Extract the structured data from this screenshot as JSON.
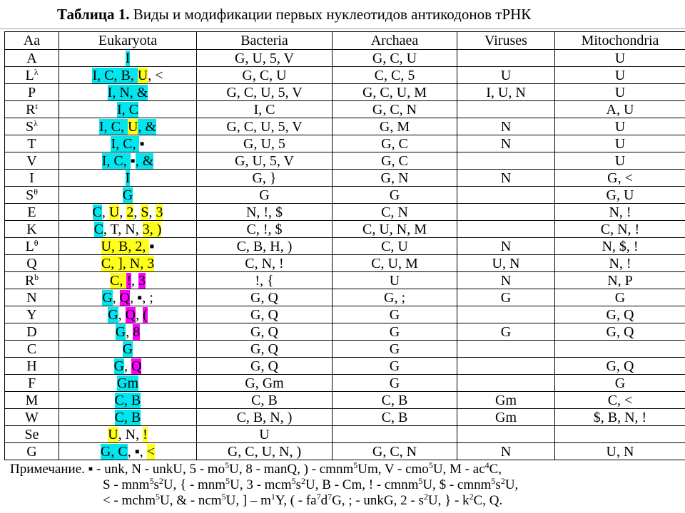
{
  "title": {
    "bold": "Таблица 1.",
    "rest": " Виды и модификации первых нуклеотидов антикодонов тРНК"
  },
  "headers": [
    "Aa",
    "Eukaryota",
    "Bacteria",
    "Archaea",
    "Viruses",
    "Mitochondria"
  ],
  "rows": [
    {
      "aa": "A",
      "aa_sup": "",
      "euk": [
        {
          "t": "I",
          "c": "c"
        }
      ],
      "bac": "G, U, 5, V",
      "arc": "G, C, U",
      "vir": "",
      "mito": "U"
    },
    {
      "aa": "L",
      "aa_sup": "λ",
      "euk": [
        {
          "t": "I, C, B, ",
          "c": "c"
        },
        {
          "t": "U",
          "c": "y"
        },
        {
          "t": ", <",
          "c": ""
        }
      ],
      "bac": "G, C, U",
      "arc": "C, C, 5",
      "vir": "U",
      "mito": "U"
    },
    {
      "aa": "P",
      "aa_sup": "",
      "euk": [
        {
          "t": "I, N, &",
          "c": "c"
        }
      ],
      "bac": "G, C, U, 5, V",
      "arc": "G, C, U, M",
      "vir": "I, U, N",
      "mito": "U"
    },
    {
      "aa": "R",
      "aa_sup": "t",
      "euk": [
        {
          "t": "I, C",
          "c": "c"
        }
      ],
      "bac": "I, C",
      "arc": "G, C, N",
      "vir": "",
      "mito": "A, U"
    },
    {
      "aa": "S",
      "aa_sup": "λ",
      "euk": [
        {
          "t": "I, C, ",
          "c": "c"
        },
        {
          "t": "U",
          "c": "y"
        },
        {
          "t": ", &",
          "c": "c"
        }
      ],
      "bac": "G, C, U, 5, V",
      "arc": "G, M",
      "vir": "N",
      "mito": "U"
    },
    {
      "aa": "T",
      "aa_sup": "",
      "euk": [
        {
          "t": "I, C, ",
          "c": "c"
        },
        {
          "t": "▪",
          "c": ""
        }
      ],
      "bac": "G, U, 5",
      "arc": "G, C",
      "vir": "N",
      "mito": "U"
    },
    {
      "aa": "V",
      "aa_sup": "",
      "euk": [
        {
          "t": "I, C, ",
          "c": "c"
        },
        {
          "t": "▪",
          "c": ""
        },
        {
          "t": ", &",
          "c": "c"
        }
      ],
      "bac": "G, U, 5, V",
      "arc": "G, C",
      "vir": "",
      "mito": "U"
    },
    {
      "aa": "I",
      "aa_sup": "",
      "euk": [
        {
          "t": "I",
          "c": "c"
        }
      ],
      "bac": "G, }",
      "arc": "G, N",
      "vir": "N",
      "mito": "G, <"
    },
    {
      "aa": "S",
      "aa_sup": "θ",
      "euk": [
        {
          "t": "G",
          "c": "c"
        }
      ],
      "bac": "G",
      "arc": "G",
      "vir": "",
      "mito": "G, U"
    },
    {
      "aa": "E",
      "aa_sup": "",
      "euk": [
        {
          "t": "C",
          "c": "c"
        },
        {
          "t": ", ",
          "c": ""
        },
        {
          "t": "U",
          "c": "y"
        },
        {
          "t": ", ",
          "c": ""
        },
        {
          "t": "2",
          "c": "y"
        },
        {
          "t": ", ",
          "c": ""
        },
        {
          "t": "S",
          "c": "y"
        },
        {
          "t": ", ",
          "c": ""
        },
        {
          "t": "3",
          "c": "y"
        }
      ],
      "bac": "N, !, $",
      "arc": "C, N",
      "vir": "",
      "mito": "N, !"
    },
    {
      "aa": "K",
      "aa_sup": "",
      "euk": [
        {
          "t": "C",
          "c": "c"
        },
        {
          "t": ", T, N, ",
          "c": ""
        },
        {
          "t": "3, )",
          "c": "y"
        }
      ],
      "bac": "C, !, $",
      "arc": "C, U, N, M",
      "vir": "",
      "mito": "C, N, !"
    },
    {
      "aa": "L",
      "aa_sup": "θ",
      "euk": [
        {
          "t": "U, B, 2, ",
          "c": "y"
        },
        {
          "t": "▪",
          "c": ""
        }
      ],
      "bac": "C, B, H, )",
      "arc": "C, U",
      "vir": "N",
      "mito": "N, $, !"
    },
    {
      "aa": "Q",
      "aa_sup": "",
      "euk": [
        {
          "t": "C, ], N, 3",
          "c": "y"
        }
      ],
      "bac": "C, N, !",
      "arc": "C, U, M",
      "vir": "U, N",
      "mito": "N, !"
    },
    {
      "aa": "R",
      "aa_sup": "b",
      "euk": [
        {
          "t": "C, ",
          "c": "y"
        },
        {
          "t": "!",
          "c": "m"
        },
        {
          "t": ", ",
          "c": ""
        },
        {
          "t": "3",
          "c": "m"
        }
      ],
      "bac": "!, {",
      "arc": "U",
      "vir": "N",
      "mito": "N, P"
    },
    {
      "aa": "N",
      "aa_sup": "",
      "euk": [
        {
          "t": "G",
          "c": "c"
        },
        {
          "t": ", ",
          "c": ""
        },
        {
          "t": "Q",
          "c": "m"
        },
        {
          "t": ", ▪, ;",
          "c": ""
        }
      ],
      "bac": "G, Q",
      "arc": "G, ;",
      "vir": "G",
      "mito": "G"
    },
    {
      "aa": "Y",
      "aa_sup": "",
      "euk": [
        {
          "t": "G",
          "c": "c"
        },
        {
          "t": ", ",
          "c": ""
        },
        {
          "t": "Q",
          "c": "m"
        },
        {
          "t": ", ",
          "c": ""
        },
        {
          "t": "(",
          "c": "m"
        }
      ],
      "bac": "G, Q",
      "arc": "G",
      "vir": "",
      "mito": "G, Q"
    },
    {
      "aa": "D",
      "aa_sup": "",
      "euk": [
        {
          "t": "G",
          "c": "c"
        },
        {
          "t": ", ",
          "c": ""
        },
        {
          "t": "8",
          "c": "m"
        }
      ],
      "bac": "G, Q",
      "arc": "G",
      "vir": "G",
      "mito": "G, Q"
    },
    {
      "aa": "C",
      "aa_sup": "",
      "euk": [
        {
          "t": "G",
          "c": "c"
        }
      ],
      "bac": "G, Q",
      "arc": "G",
      "vir": "",
      "mito": ""
    },
    {
      "aa": "H",
      "aa_sup": "",
      "euk": [
        {
          "t": "G",
          "c": "c"
        },
        {
          "t": ", ",
          "c": ""
        },
        {
          "t": "Q",
          "c": "m"
        }
      ],
      "bac": "G, Q",
      "arc": "G",
      "vir": "",
      "mito": "G, Q"
    },
    {
      "aa": "F",
      "aa_sup": "",
      "euk": [
        {
          "t": "Gm",
          "c": "c"
        }
      ],
      "bac": "G, Gm",
      "arc": "G",
      "vir": "",
      "mito": "G"
    },
    {
      "aa": "M",
      "aa_sup": "",
      "euk": [
        {
          "t": "C, B",
          "c": "c"
        }
      ],
      "bac": "C, B",
      "arc": "C, B",
      "vir": "Gm",
      "mito": "C, <"
    },
    {
      "aa": "W",
      "aa_sup": "",
      "euk": [
        {
          "t": "C, B",
          "c": "c"
        }
      ],
      "bac": "C, B, N, )",
      "arc": "C, B",
      "vir": "Gm",
      "mito": "$, B, N, !"
    },
    {
      "aa": "Se",
      "aa_sup": "",
      "euk": [
        {
          "t": "U",
          "c": "y"
        },
        {
          "t": ", N, ",
          "c": ""
        },
        {
          "t": "!",
          "c": "y"
        }
      ],
      "bac": "U",
      "arc": "",
      "vir": "",
      "mito": ""
    },
    {
      "aa": "G",
      "aa_sup": "",
      "euk": [
        {
          "t": "G, C",
          "c": "c"
        },
        {
          "t": ", ▪, ",
          "c": ""
        },
        {
          "t": "<",
          "c": "y"
        }
      ],
      "bac": "G, C, U, N, )",
      "arc": "G, C, N",
      "vir": "N",
      "mito": "U, N"
    }
  ],
  "note": {
    "label": "Примечание.",
    "lines": [
      [
        {
          "t": " ▪ - unk, N - unkU, 5 - mo"
        },
        {
          "s": "5"
        },
        {
          "t": "U, 8 - manQ, ) - cmnm"
        },
        {
          "s": "5"
        },
        {
          "t": "Um, V - cmo"
        },
        {
          "s": "5"
        },
        {
          "t": "U, M - ac"
        },
        {
          "s": "4"
        },
        {
          "t": "C,"
        }
      ],
      [
        {
          "t": "S - mnm"
        },
        {
          "s": "5"
        },
        {
          "t": "s"
        },
        {
          "s": "2"
        },
        {
          "t": "U, { - mnm"
        },
        {
          "s": "5"
        },
        {
          "t": "U, 3 - mcm"
        },
        {
          "s": "5"
        },
        {
          "t": "s"
        },
        {
          "s": "2"
        },
        {
          "t": "U, B - Cm, ! - cmnm"
        },
        {
          "s": "5"
        },
        {
          "t": "U, $ - cmnm"
        },
        {
          "s": "5"
        },
        {
          "t": "s"
        },
        {
          "s": "2"
        },
        {
          "t": "U,"
        }
      ],
      [
        {
          "t": "< - mchm"
        },
        {
          "s": "5"
        },
        {
          "t": "U, & - ncm"
        },
        {
          "s": "5"
        },
        {
          "t": "U, ] – m"
        },
        {
          "s": "1"
        },
        {
          "t": "Y, ( - fa"
        },
        {
          "s": "7"
        },
        {
          "t": "d"
        },
        {
          "s": "7"
        },
        {
          "t": "G, ; - unkG, 2 - s"
        },
        {
          "s": "2"
        },
        {
          "t": "U, } - k"
        },
        {
          "s": "2"
        },
        {
          "t": "C, Q."
        }
      ]
    ]
  }
}
